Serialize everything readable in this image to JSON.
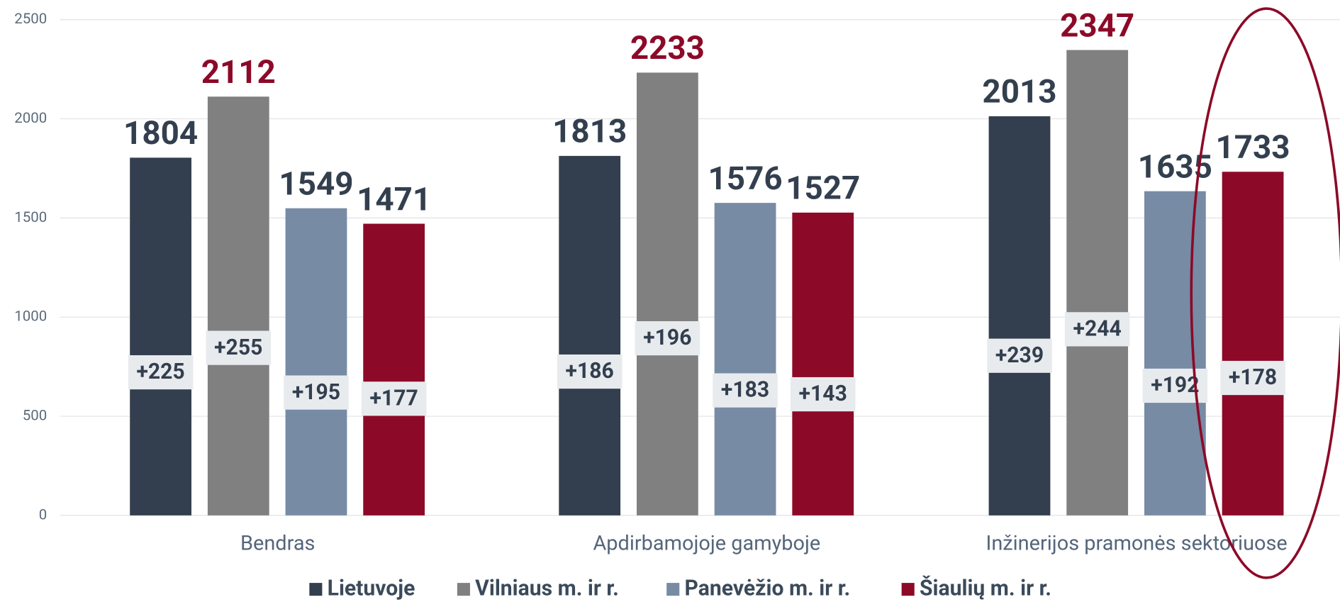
{
  "chart_data": {
    "type": "bar",
    "categories": [
      "Bendras",
      "Apdirbamojoje gamyboje",
      "Inžinerijos pramonės sektoriuose"
    ],
    "series": [
      {
        "name": "Lietuvoje",
        "color": "#333f4e",
        "label_color": "#333f4e",
        "values": [
          1804,
          1813,
          2013
        ],
        "changes": [
          225,
          186,
          239
        ],
        "change_labels": [
          "+225",
          "+186",
          "+239"
        ]
      },
      {
        "name": "Vilniaus m. ir r.",
        "color": "#808080",
        "label_color": "#8c0a28",
        "values": [
          2112,
          2233,
          2347
        ],
        "changes": [
          255,
          196,
          244
        ],
        "change_labels": [
          "+255",
          "+196",
          "+244"
        ]
      },
      {
        "name": "Panevėžio m. ir r.",
        "color": "#778ba5",
        "label_color": "#333f4e",
        "values": [
          1549,
          1576,
          1635
        ],
        "changes": [
          195,
          183,
          192
        ],
        "change_labels": [
          "+195",
          "+183",
          "+192"
        ]
      },
      {
        "name": "Šiaulių m. ir r.",
        "color": "#8c0a28",
        "label_color": "#333f4e",
        "values": [
          1471,
          1527,
          1733
        ],
        "changes": [
          177,
          143,
          178
        ],
        "change_labels": [
          "+177",
          "+143",
          "+178"
        ]
      }
    ],
    "ylim": [
      0,
      2500
    ],
    "yticks": [
      0,
      500,
      1000,
      1500,
      2000,
      2500
    ],
    "grid": true,
    "legend": "bottom"
  }
}
